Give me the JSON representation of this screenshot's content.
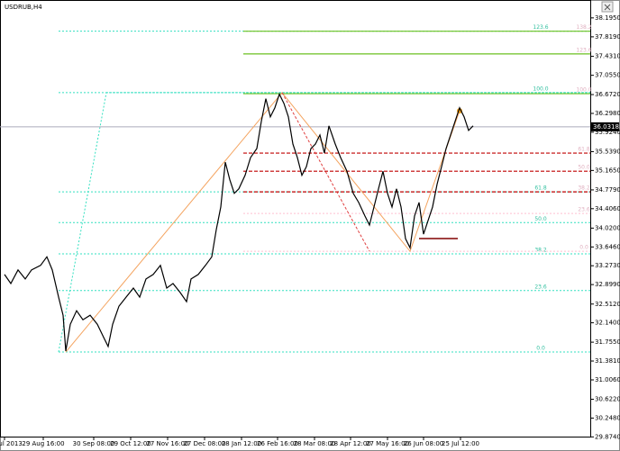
{
  "chart_data": {
    "type": "line",
    "title": "USDRUB,H4",
    "xlim": [
      0,
      655
    ],
    "ylim": [
      29.88,
      38.55
    ],
    "xticks": [
      {
        "value": 5,
        "label": "31 Jul 2013"
      },
      {
        "value": 48,
        "label": "29 Aug 16:00"
      },
      {
        "value": 104,
        "label": "30 Sep 08:00"
      },
      {
        "value": 145,
        "label": "29 Oct 12:00"
      },
      {
        "value": 186,
        "label": "27 Nov 16:00"
      },
      {
        "value": 227,
        "label": "27 Dec 08:00"
      },
      {
        "value": 268,
        "label": "28 Jan 12:00"
      },
      {
        "value": 308,
        "label": "26 Feb 16:00"
      },
      {
        "value": 349,
        "label": "28 Mar 08:00"
      },
      {
        "value": 389,
        "label": "28 Apr 12:00"
      },
      {
        "value": 430,
        "label": "27 May 16:00"
      },
      {
        "value": 470,
        "label": "26 Jun 08:00"
      },
      {
        "value": 511,
        "label": "25 Jul 12:00"
      }
    ],
    "yticks": [
      {
        "value": 38.195,
        "label": "38.1950"
      },
      {
        "value": 37.819,
        "label": "37.8190"
      },
      {
        "value": 37.431,
        "label": "37.4310"
      },
      {
        "value": 37.055,
        "label": "37.0550"
      },
      {
        "value": 36.672,
        "label": "36.6720"
      },
      {
        "value": 36.298,
        "label": "36.2980"
      },
      {
        "value": 35.924,
        "label": "35.9240"
      },
      {
        "value": 35.539,
        "label": "35.5390"
      },
      {
        "value": 35.165,
        "label": "35.1650"
      },
      {
        "value": 34.779,
        "label": "34.7790"
      },
      {
        "value": 34.406,
        "label": "34.4060"
      },
      {
        "value": 34.02,
        "label": "34.0200"
      },
      {
        "value": 33.646,
        "label": "33.6460"
      },
      {
        "value": 33.273,
        "label": "33.2730"
      },
      {
        "value": 32.899,
        "label": "32.8990"
      },
      {
        "value": 32.512,
        "label": "32.5120"
      },
      {
        "value": 32.14,
        "label": "32.1400"
      },
      {
        "value": 31.755,
        "label": "31.7550"
      },
      {
        "value": 31.381,
        "label": "31.3810"
      },
      {
        "value": 31.006,
        "label": "31.0060"
      },
      {
        "value": 30.622,
        "label": "30.6220"
      },
      {
        "value": 30.248,
        "label": "30.2480"
      },
      {
        "value": 29.874,
        "label": "29.8740"
      }
    ],
    "current_price": {
      "value": 36.0318,
      "label": "36.0318"
    },
    "series": [
      {
        "color": "#000000",
        "x": [
          5,
          12,
          20,
          28,
          35,
          45,
          52,
          58,
          65,
          70,
          73,
          78,
          85,
          92,
          100,
          108,
          115,
          120,
          125,
          132,
          140,
          148,
          155,
          162,
          170,
          178,
          185,
          192,
          200,
          207,
          212,
          220,
          228,
          235,
          240,
          245,
          250,
          255,
          260,
          265,
          272,
          278,
          285,
          290,
          295,
          300,
          305,
          310,
          315,
          320,
          325,
          330,
          335,
          340,
          345,
          350,
          355,
          360,
          365,
          372,
          378,
          385,
          392,
          398,
          405,
          410,
          415,
          420,
          425,
          430,
          435,
          440,
          445,
          450,
          455,
          460,
          465,
          470,
          475,
          480,
          485,
          490,
          495,
          500,
          505,
          510,
          515,
          520,
          525
        ],
        "values": [
          33.1,
          32.92,
          33.19,
          33.01,
          33.19,
          33.28,
          33.45,
          33.19,
          32.65,
          32.29,
          31.58,
          32.11,
          32.38,
          32.2,
          32.29,
          32.11,
          31.85,
          31.67,
          32.11,
          32.47,
          32.65,
          32.83,
          32.65,
          33.01,
          33.1,
          33.28,
          32.83,
          32.92,
          32.74,
          32.56,
          33.01,
          33.1,
          33.28,
          33.45,
          33.99,
          34.44,
          35.33,
          34.98,
          34.71,
          34.8,
          35.07,
          35.42,
          35.6,
          36.14,
          36.59,
          36.23,
          36.41,
          36.68,
          36.5,
          36.23,
          35.69,
          35.42,
          35.07,
          35.24,
          35.6,
          35.69,
          35.87,
          35.51,
          36.05,
          35.69,
          35.42,
          35.15,
          34.71,
          34.53,
          34.26,
          34.08,
          34.44,
          34.8,
          35.15,
          34.71,
          34.44,
          34.8,
          34.44,
          33.81,
          33.63,
          34.26,
          34.53,
          33.9,
          34.17,
          34.44,
          34.89,
          35.24,
          35.6,
          35.87,
          36.14,
          36.41,
          36.23,
          35.96,
          36.05
        ]
      }
    ],
    "zigzag": {
      "color": "#f4a460",
      "x": [
        73,
        313,
        455,
        510
      ],
      "values": [
        31.56,
        36.71,
        33.56,
        36.35
      ]
    },
    "fibo_sets": [
      {
        "color": "#33e0c0",
        "x_start": 65,
        "levels": [
          {
            "value": 31.56,
            "label": "0.0"
          },
          {
            "value": 32.78,
            "label": "23.6"
          },
          {
            "value": 33.51,
            "label": "38.2"
          },
          {
            "value": 34.13,
            "label": "50.0"
          },
          {
            "value": 34.74,
            "label": "61.8"
          },
          {
            "value": 36.71,
            "label": "100.0"
          },
          {
            "value": 37.93,
            "label": "123.6"
          }
        ]
      },
      {
        "color": "#c0d8a0",
        "x_start": 270,
        "levels": [
          {
            "value": 33.56,
            "label": "0.0"
          },
          {
            "value": 34.31,
            "label": "23.6"
          },
          {
            "value": 34.74,
            "label": "38.2"
          },
          {
            "value": 35.15,
            "label": "50.0"
          },
          {
            "value": 35.51,
            "label": "61.8"
          },
          {
            "value": 36.69,
            "label": "100.0"
          },
          {
            "value": 37.48,
            "label": "123.6"
          },
          {
            "value": 37.93,
            "label": "138.2"
          }
        ]
      }
    ]
  }
}
